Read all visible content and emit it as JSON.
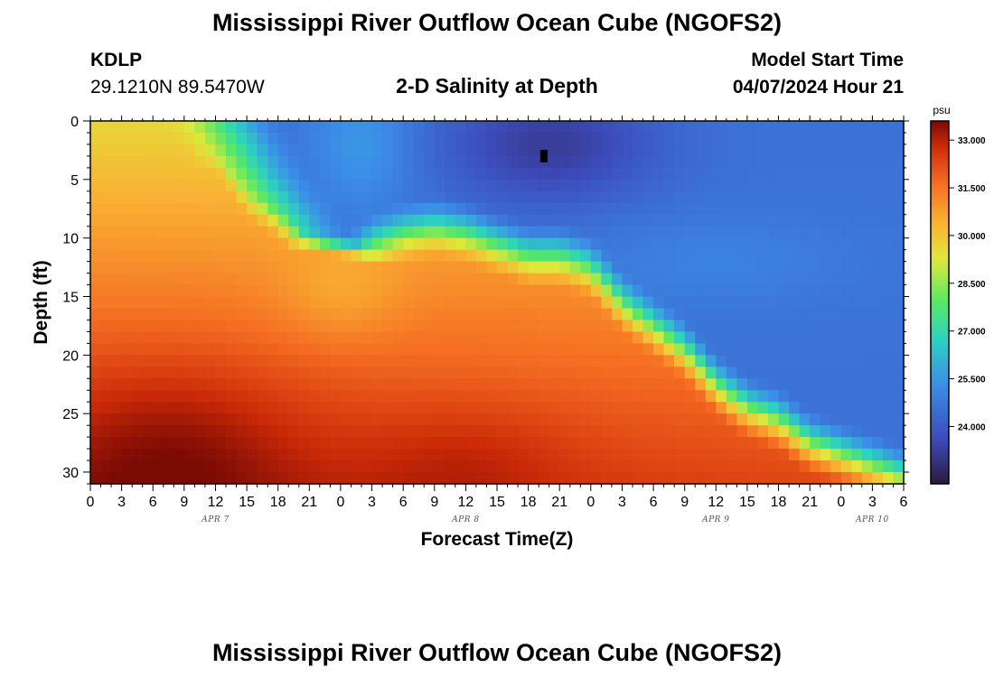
{
  "page": {
    "title": "Mississippi River Outflow Ocean Cube (NGOFS2)",
    "footer_title": "Mississippi River Outflow Ocean Cube (NGOFS2)",
    "station_id": "KDLP",
    "coordinates": "29.1210N  89.5470W",
    "subtitle": "2-D Salinity at Depth",
    "model_start_label": "Model Start Time",
    "model_start_value": "04/07/2024 Hour 21"
  },
  "chart_data": {
    "type": "heatmap",
    "title": "2-D Salinity at Depth",
    "xlabel": "Forecast Time(Z)",
    "ylabel": "Depth (ft)",
    "x_range_hours": [
      0,
      78
    ],
    "x_tick_labels": [
      "0",
      "3",
      "6",
      "9",
      "12",
      "15",
      "18",
      "21",
      "0",
      "3",
      "6",
      "9",
      "12",
      "15",
      "18",
      "21",
      "0",
      "3",
      "6",
      "9",
      "12",
      "15",
      "18",
      "21",
      "0",
      "3",
      "6"
    ],
    "date_labels": [
      {
        "text": "APR 7",
        "hour": 12
      },
      {
        "text": "APR 8",
        "hour": 36
      },
      {
        "text": "APR 9",
        "hour": 60
      },
      {
        "text": "APR 10",
        "hour": 75
      }
    ],
    "ylim": [
      0,
      31
    ],
    "y_tick_labels": [
      "0",
      "5",
      "10",
      "15",
      "20",
      "25",
      "30"
    ],
    "grid": false,
    "colorbar": {
      "unit": "psu",
      "range": [
        22.2,
        33.6
      ],
      "tick_labels": [
        "33.000",
        "31.500",
        "30.000",
        "28.500",
        "27.000",
        "25.500",
        "24.000"
      ],
      "colormap_colors": [
        "#2b1a3e",
        "#3c4ab8",
        "#3c8de8",
        "#2cd2c0",
        "#56e866",
        "#dfe83a",
        "#f9b233",
        "#f56c22",
        "#cc2a08",
        "#7a0a04"
      ]
    },
    "marker": {
      "hour": 43.5,
      "depth": 3
    },
    "contour_guides": {
      "fresh_layer_bottom_depth": [
        {
          "hour": 0,
          "depth": 0
        },
        {
          "hour": 12,
          "depth": 2
        },
        {
          "hour": 15,
          "depth": 6
        },
        {
          "hour": 18,
          "depth": 8
        },
        {
          "hour": 21,
          "depth": 11
        },
        {
          "hour": 24,
          "depth": 13
        },
        {
          "hour": 27,
          "depth": 11
        },
        {
          "hour": 30,
          "depth": 10
        },
        {
          "hour": 33,
          "depth": 9.5
        },
        {
          "hour": 36,
          "depth": 10
        },
        {
          "hour": 39,
          "depth": 11
        },
        {
          "hour": 42,
          "depth": 12
        },
        {
          "hour": 45,
          "depth": 12
        },
        {
          "hour": 48,
          "depth": 13
        },
        {
          "hour": 51,
          "depth": 16
        },
        {
          "hour": 54,
          "depth": 18
        },
        {
          "hour": 57,
          "depth": 20
        },
        {
          "hour": 60,
          "depth": 23
        },
        {
          "hour": 63,
          "depth": 25
        },
        {
          "hour": 66,
          "depth": 26
        },
        {
          "hour": 69,
          "depth": 28
        },
        {
          "hour": 72,
          "depth": 29
        },
        {
          "hour": 75,
          "depth": 30
        },
        {
          "hour": 78,
          "depth": 31
        }
      ],
      "front_hours": [
        {
          "depth": 0,
          "hour": 14
        },
        {
          "depth": 5,
          "hour": 17
        },
        {
          "depth": 10,
          "hour": 21
        },
        {
          "depth": 15,
          "hour": 50
        },
        {
          "depth": 20,
          "hour": 56
        },
        {
          "depth": 25,
          "hour": 62
        },
        {
          "depth": 30,
          "hour": 75
        }
      ]
    }
  }
}
